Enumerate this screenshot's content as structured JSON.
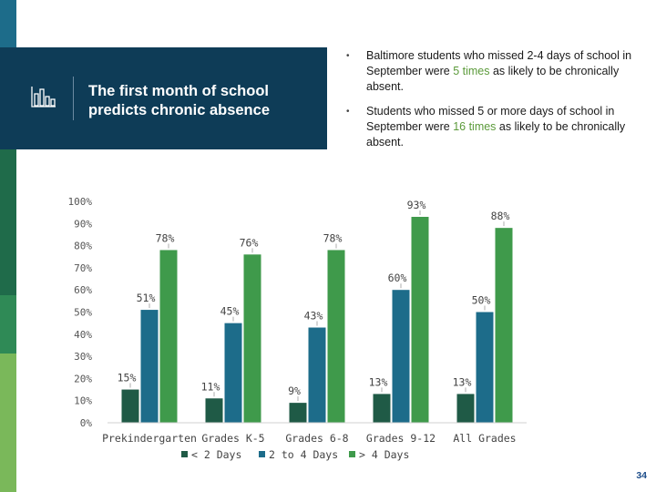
{
  "header": {
    "title_line1": "The first month of school",
    "title_line2": "predicts chronic absence"
  },
  "bullets": [
    {
      "pre": "Baltimore students who missed 2-4 days of school in September were ",
      "highlight": "5 times",
      "post": " as likely to be chronically absent."
    },
    {
      "pre": "Students who missed 5 or more days of school in September were ",
      "highlight": "16 times",
      "post": " as likely to be chronically absent."
    }
  ],
  "bullet_char": "•",
  "page_number": "34",
  "chart_data": {
    "type": "bar",
    "categories": [
      "Prekindergarten",
      "Grades K-5",
      "Grades 6-8",
      "Grades 9-12",
      "All Grades"
    ],
    "series": [
      {
        "name": "< 2 Days",
        "values": [
          15,
          11,
          9,
          13,
          13
        ],
        "labels": [
          "15%",
          "11%",
          "9%",
          "13%",
          "13%"
        ],
        "color": "#1f5a46"
      },
      {
        "name": "2 to 4 Days",
        "values": [
          51,
          45,
          43,
          60,
          50
        ],
        "labels": [
          "51%",
          "45%",
          "43%",
          "60%",
          "50%"
        ],
        "color": "#1d6c8a"
      },
      {
        "name": "> 4 Days",
        "values": [
          78,
          76,
          78,
          93,
          88
        ],
        "labels": [
          "78%",
          "76%",
          "78%",
          "93%",
          "88%"
        ],
        "color": "#3f9a4b"
      }
    ],
    "yticks": [
      "0%",
      "10%",
      "20%",
      "30%",
      "40%",
      "50%",
      "60%",
      "70%",
      "80%",
      "90%",
      "100%"
    ],
    "ylim": [
      0,
      100
    ],
    "legend_position": "bottom",
    "grid": false,
    "title": "",
    "xlabel": "",
    "ylabel": ""
  },
  "colors": {
    "title_bg": "#0e3c57",
    "highlight": "#5b9a3a",
    "page_number": "#1d4d8a"
  }
}
